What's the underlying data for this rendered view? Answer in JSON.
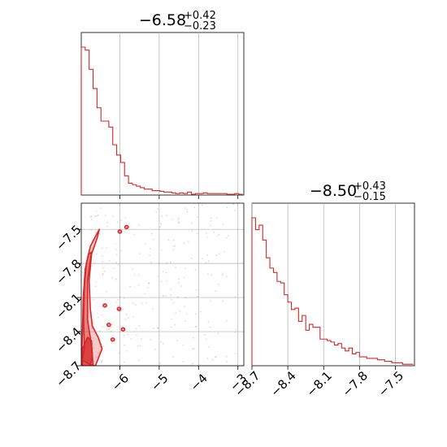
{
  "chart_data": [
    {
      "type": "histogram",
      "title": {
        "main": "−6.58",
        "sup": "+0.42",
        "sub": "−0.23"
      },
      "xlim": [
        -6.98,
        -2.85
      ],
      "xticks": [
        -6,
        -5,
        -4,
        -3
      ],
      "grid": true,
      "color": "#d62728",
      "bin_edges_start": -6.98,
      "bin_width": 0.1,
      "values": [
        1.0,
        0.98,
        0.85,
        0.72,
        0.59,
        0.5,
        0.5,
        0.46,
        0.34,
        0.27,
        0.22,
        0.13,
        0.08,
        0.07,
        0.06,
        0.05,
        0.04,
        0.04,
        0.03,
        0.03,
        0.025,
        0.02,
        0.02,
        0.015,
        0.01,
        0.015,
        0.01,
        0.02,
        0.005,
        0.01,
        0.01,
        0.015,
        0.01,
        0.01,
        0.01,
        0.01,
        0.01,
        0.005,
        0.005,
        0.01,
        0.005
      ]
    },
    {
      "type": "contour-scatter",
      "xlim": [
        -6.98,
        -2.85
      ],
      "ylim": [
        -8.7,
        -7.27
      ],
      "xticks": [
        -6,
        -5,
        -4,
        -3
      ],
      "yticks": [
        -7.5,
        -7.8,
        -8.1,
        -8.4,
        -8.7
      ],
      "grid": true,
      "color": "#d62728",
      "contours": [
        [
          [
            -6.98,
            -8.7
          ],
          [
            -6.9,
            -8.55
          ],
          [
            -6.92,
            -8.3
          ],
          [
            -6.9,
            -8.0
          ],
          [
            -6.85,
            -7.8
          ],
          [
            -6.75,
            -7.65
          ],
          [
            -6.6,
            -7.55
          ],
          [
            -6.52,
            -7.5
          ],
          [
            -6.58,
            -7.58
          ],
          [
            -6.72,
            -7.72
          ],
          [
            -6.78,
            -7.95
          ],
          [
            -6.75,
            -8.2
          ],
          [
            -6.7,
            -8.35
          ],
          [
            -6.55,
            -8.45
          ],
          [
            -6.45,
            -8.55
          ],
          [
            -6.62,
            -8.7
          ]
        ],
        [
          [
            -6.98,
            -8.65
          ],
          [
            -6.95,
            -8.4
          ],
          [
            -6.93,
            -8.1
          ],
          [
            -6.88,
            -7.85
          ],
          [
            -6.8,
            -7.72
          ],
          [
            -6.72,
            -7.7
          ],
          [
            -6.82,
            -7.95
          ],
          [
            -6.82,
            -8.3
          ],
          [
            -6.72,
            -8.52
          ],
          [
            -6.68,
            -8.7
          ]
        ],
        [
          [
            -6.95,
            -8.7
          ],
          [
            -6.95,
            -8.55
          ],
          [
            -6.82,
            -8.45
          ],
          [
            -6.72,
            -8.48
          ],
          [
            -6.7,
            -8.62
          ],
          [
            -6.75,
            -8.7
          ]
        ]
      ],
      "islands": [
        [
          -6.38,
          -8.17
        ],
        [
          -6.28,
          -8.34
        ],
        [
          -6.02,
          -8.2
        ],
        [
          -5.92,
          -8.38
        ],
        [
          -6.18,
          -8.47
        ],
        [
          -5.83,
          -7.48
        ],
        [
          -6.0,
          -7.52
        ]
      ]
    },
    {
      "type": "histogram",
      "title": {
        "main": "−8.50",
        "sup": "+0.43",
        "sub": "−0.15"
      },
      "xlim": [
        -8.7,
        -7.34
      ],
      "xticks": [
        -8.7,
        -8.4,
        -8.1,
        -7.8,
        -7.5
      ],
      "grid": true,
      "color": "#d62728",
      "bin_edges_start": -8.7,
      "bin_width": 0.03,
      "values": [
        1.0,
        0.92,
        0.95,
        0.85,
        0.73,
        0.66,
        0.63,
        0.57,
        0.56,
        0.48,
        0.43,
        0.38,
        0.39,
        0.3,
        0.34,
        0.24,
        0.28,
        0.26,
        0.26,
        0.18,
        0.18,
        0.17,
        0.16,
        0.14,
        0.15,
        0.12,
        0.1,
        0.12,
        0.08,
        0.09,
        0.06,
        0.06,
        0.05,
        0.05,
        0.05,
        0.04,
        0.04,
        0.03,
        0.03,
        0.02,
        0.02,
        0.02,
        0.01,
        0.01,
        0.01
      ]
    }
  ]
}
